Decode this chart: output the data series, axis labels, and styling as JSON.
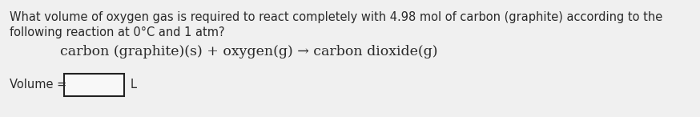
{
  "bg_color": "#f0f0f0",
  "text_color": "#2a2a2a",
  "line1": "What volume of oxygen gas is required to react completely with 4.98 mol of carbon (graphite) according to the",
  "line2": "following reaction at 0°C and 1 atm?",
  "equation": "carbon (graphite)(s) + oxygen(g) → carbon dioxide(g)",
  "volume_label": "Volume = ",
  "unit_label": "L",
  "body_fontsize": 10.5,
  "eq_fontsize": 12.5,
  "vol_fontsize": 10.5,
  "box_facecolor": "#f8f8f8",
  "box_edgecolor": "#222222"
}
